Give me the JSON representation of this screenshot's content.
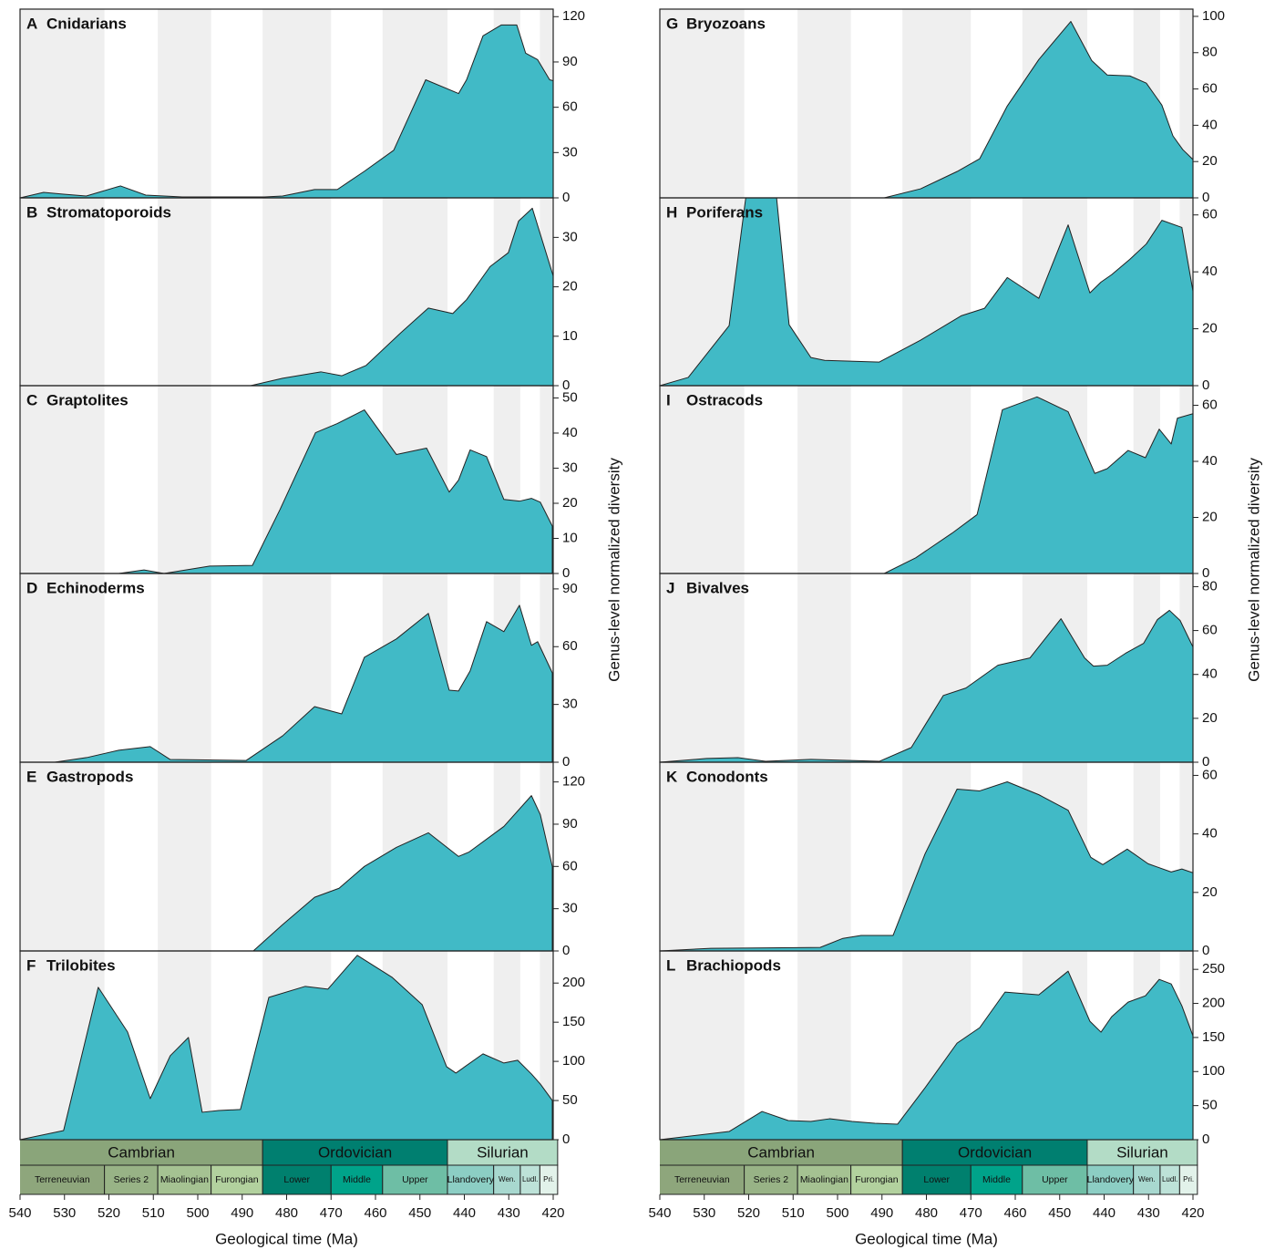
{
  "chart_data": [
    {
      "type": "area",
      "label": "A",
      "title": "Cnidarians",
      "color": "#41bac6",
      "x": [
        540,
        534.7,
        530.2,
        525.1,
        517.4,
        511.7,
        503.5,
        485,
        480.9,
        473.7,
        468.6,
        462.5,
        455.9,
        448.7,
        441.3,
        439.5,
        435.8,
        431.7,
        428.2,
        426.2,
        423.5,
        420.8,
        420
      ],
      "values": [
        0,
        3.6,
        2.4,
        1.2,
        7.9,
        1.8,
        0.6,
        0.6,
        1.2,
        5.5,
        5.5,
        17.6,
        31.5,
        78.2,
        69.1,
        78.2,
        107.3,
        114.5,
        114.5,
        95.8,
        91.5,
        78.2,
        77.6
      ],
      "ylim": [
        0,
        125
      ],
      "yticks": [
        0,
        30,
        60,
        90,
        120
      ]
    },
    {
      "type": "area",
      "label": "B",
      "title": "Stromatoporoids",
      "color": "#41bac6",
      "x": [
        488.1,
        480.9,
        472.3,
        467.6,
        462.1,
        454.3,
        448.1,
        442.6,
        439.5,
        434.2,
        430.1,
        427.8,
        424.7,
        420
      ],
      "values": [
        0,
        1.5,
        2.8,
        2.0,
        4.1,
        10.7,
        15.7,
        14.6,
        17.4,
        24.1,
        26.9,
        33.3,
        35.9,
        22.2
      ],
      "ylim": [
        0,
        38
      ],
      "yticks": [
        0,
        10,
        20,
        30
      ]
    },
    {
      "type": "area",
      "label": "C",
      "title": "Graptolites",
      "color": "#41bac6",
      "x": [
        517.8,
        512.1,
        507.6,
        497.3,
        487.7,
        481.5,
        473.5,
        468.6,
        462.5,
        455.3,
        448.5,
        443.4,
        441.3,
        438.7,
        435,
        431.1,
        427.6,
        424.9,
        422.9,
        420.2
      ],
      "values": [
        0,
        1.0,
        0,
        2.1,
        2.3,
        18.2,
        40.1,
        42.7,
        46.6,
        33.9,
        35.7,
        23.2,
        26.6,
        35.2,
        33.3,
        21.1,
        20.6,
        21.4,
        20.3,
        13.5
      ],
      "ylim": [
        0,
        53.5
      ],
      "yticks": [
        0,
        10,
        20,
        30,
        40,
        50
      ]
    },
    {
      "type": "area",
      "label": "D",
      "title": "Echinoderms",
      "color": "#41bac6",
      "x": [
        532.2,
        525.0,
        517.8,
        510.7,
        506.2,
        489.1,
        480.9,
        473.7,
        467.6,
        462.5,
        455.3,
        448.1,
        443.4,
        441.3,
        438.7,
        435,
        431.1,
        427.6,
        424.9,
        423.5,
        420.2
      ],
      "values": [
        0,
        2.4,
        6.2,
        8.1,
        1.4,
        0.9,
        13.7,
        28.9,
        25.1,
        54.5,
        64.0,
        77.3,
        37.4,
        37.0,
        47.4,
        73.0,
        67.8,
        81.5,
        60.7,
        62.6,
        46.4
      ],
      "ylim": [
        0,
        98
      ],
      "yticks": [
        0,
        30,
        60,
        90
      ]
    },
    {
      "type": "area",
      "label": "E",
      "title": "Gastropods",
      "color": "#41bac6",
      "x": [
        487.5,
        480.9,
        473.7,
        468.2,
        462.5,
        455.3,
        448.1,
        441.3,
        438.9,
        431.1,
        424.9,
        422.9,
        420.2
      ],
      "values": [
        0,
        18.7,
        38.1,
        44.5,
        60.0,
        73.5,
        83.9,
        67.1,
        70.3,
        88.4,
        110.3,
        96.8,
        60.0
      ],
      "ylim": [
        0,
        134
      ],
      "yticks": [
        0,
        30,
        60,
        90,
        120
      ]
    },
    {
      "type": "area",
      "label": "F",
      "title": "Trilobites",
      "color": "#41bac6",
      "x": [
        540,
        530.2,
        522.4,
        515.8,
        510.7,
        506.2,
        502.1,
        499.0,
        495.3,
        490.4,
        484.0,
        475.8,
        470.7,
        464.1,
        456.3,
        449.5,
        444.0,
        441.9,
        435.8,
        431.1,
        428.0,
        424.9,
        422.9,
        420.2
      ],
      "values": [
        0,
        11.7,
        194.6,
        137.5,
        52.4,
        107.2,
        130.5,
        35.0,
        37.3,
        38.5,
        181.8,
        195.8,
        192.3,
        235.4,
        207.5,
        172.5,
        93.2,
        85.1,
        109.6,
        97.9,
        101.4,
        83.9,
        71.1,
        50.1
      ],
      "ylim": [
        0,
        241
      ],
      "yticks": [
        0,
        50,
        100,
        150,
        200
      ]
    },
    {
      "type": "area",
      "label": "G",
      "title": "Bryozoans",
      "color": "#41bac6",
      "x": [
        489.5,
        481.3,
        473.1,
        468.0,
        461.8,
        454.7,
        447.5,
        442.8,
        439.3,
        434.2,
        430.5,
        427.0,
        424.5,
        422.3,
        420
      ],
      "values": [
        0,
        5.0,
        14.5,
        21.6,
        50.6,
        76.2,
        97.2,
        75.7,
        67.7,
        67.2,
        63.2,
        51.1,
        34.1,
        26.6,
        21.1
      ],
      "ylim": [
        0,
        104
      ],
      "yticks": [
        0,
        20,
        40,
        60,
        80,
        100
      ]
    },
    {
      "type": "area",
      "label": "H",
      "title": "Poriferans",
      "color": "#41bac6",
      "x": [
        540,
        533.6,
        524.4,
        519.5,
        514.6,
        510.9,
        506.0,
        502.9,
        490.6,
        481.3,
        472.1,
        466.9,
        461.8,
        454.7,
        448.1,
        443.2,
        440.7,
        438.3,
        434.2,
        430.5,
        427.0,
        422.5,
        420
      ],
      "values": [
        0,
        2.9,
        21.1,
        80,
        80,
        21.4,
        9.9,
        8.9,
        8.3,
        16.0,
        24.6,
        27.2,
        38.0,
        30.7,
        56.5,
        32.6,
        36.4,
        39.0,
        44.4,
        49.8,
        58.1,
        55.6,
        33.2
      ],
      "ylim": [
        0,
        66
      ],
      "yticks": [
        0,
        20,
        40,
        60
      ]
    },
    {
      "type": "area",
      "label": "I",
      "title": "Ostracods",
      "color": "#41bac6",
      "x": [
        489.5,
        482.4,
        474.2,
        468.6,
        462.9,
        455.1,
        448.1,
        442.1,
        439.3,
        434.6,
        430.7,
        427.6,
        424.9,
        423.5,
        420
      ],
      "values": [
        0,
        5.6,
        14.4,
        21.0,
        58.4,
        63.0,
        57.7,
        35.7,
        37.4,
        43.9,
        41.3,
        51.5,
        46.2,
        55.4,
        57.0
      ],
      "ylim": [
        0,
        67
      ],
      "yticks": [
        0,
        20,
        40,
        60
      ]
    },
    {
      "type": "area",
      "label": "J",
      "title": "Bivalves",
      "color": "#41bac6",
      "x": [
        540,
        529.5,
        522.4,
        516.2,
        506.0,
        490.6,
        483.4,
        476.2,
        471.1,
        463.9,
        456.7,
        449.7,
        444.4,
        442.4,
        439.3,
        435.2,
        431.1,
        428,
        425.3,
        422.9,
        420
      ],
      "values": [
        0,
        1.7,
        2.1,
        0.4,
        1.3,
        0.4,
        6.7,
        30.4,
        33.8,
        44.2,
        47.5,
        65.4,
        47.5,
        43.8,
        44.2,
        49.6,
        54.2,
        65.0,
        69.2,
        64.6,
        52.5
      ],
      "ylim": [
        0,
        86
      ],
      "yticks": [
        0,
        20,
        40,
        60,
        80
      ]
    },
    {
      "type": "area",
      "label": "K",
      "title": "Conodonts",
      "color": "#41bac6",
      "x": [
        540,
        528.5,
        503.9,
        498.8,
        494.7,
        487.5,
        480.3,
        473.1,
        468.0,
        461.8,
        454.7,
        448.1,
        443.0,
        440.3,
        434.8,
        430.1,
        424.9,
        422.5,
        420
      ],
      "values": [
        0,
        0.9,
        1.2,
        4.3,
        5.3,
        5.3,
        33.2,
        55.3,
        54.7,
        57.8,
        53.4,
        48.1,
        32.0,
        29.5,
        34.8,
        29.8,
        27.0,
        28.0,
        26.7
      ],
      "ylim": [
        0,
        64.5
      ],
      "yticks": [
        0,
        20,
        40,
        60
      ]
    },
    {
      "type": "area",
      "label": "L",
      "title": "Brachiopods",
      "color": "#41bac6",
      "x": [
        540,
        524.4,
        517.0,
        511.1,
        506.0,
        501.8,
        496.7,
        491.6,
        486.5,
        480.3,
        473.1,
        468.0,
        462.3,
        454.7,
        448.1,
        443.2,
        440.7,
        438.3,
        434.6,
        430.7,
        427.6,
        424.9,
        422.5,
        420
      ],
      "values": [
        0,
        12.0,
        41.4,
        28.1,
        26.7,
        30.7,
        26.7,
        24.1,
        22.7,
        76.2,
        141.7,
        164.4,
        216.6,
        212.6,
        247.3,
        173.8,
        157.8,
        180.5,
        201.9,
        211.2,
        235.3,
        228.6,
        196.5,
        152.4
      ],
      "ylim": [
        0,
        277
      ],
      "yticks": [
        0,
        50,
        100,
        150,
        200,
        250
      ]
    }
  ],
  "axes": [
    {
      "xlabel": "Geological time (Ma)",
      "ylabel": "Genus-level normalized diversity",
      "xlim": [
        540,
        420
      ],
      "xticks": [
        540,
        530,
        520,
        510,
        500,
        490,
        480,
        470,
        460,
        450,
        440,
        430,
        420
      ]
    },
    {
      "xlabel": "Geological time (Ma)",
      "ylabel": "Genus-level normalized diversity",
      "xlim": [
        540,
        420
      ],
      "xticks": [
        540,
        530,
        520,
        510,
        500,
        490,
        480,
        470,
        460,
        450,
        440,
        430,
        420
      ]
    }
  ],
  "timescale": {
    "periods": [
      {
        "name": "Cambrian",
        "start": 541,
        "end": 485.4,
        "color": "#8aa57a",
        "text": "#ffffff"
      },
      {
        "name": "Ordovician",
        "start": 485.4,
        "end": 443.8,
        "color": "#007f70",
        "text": "#ffffff"
      },
      {
        "name": "Silurian",
        "start": 443.8,
        "end": 419,
        "color": "#b3dcc6",
        "text": "#111111"
      }
    ],
    "epochs": [
      {
        "name": "Terreneuvian",
        "start": 541,
        "end": 521,
        "color": "#8ea67c",
        "text": "#111111"
      },
      {
        "name": "Series 2",
        "start": 521,
        "end": 509,
        "color": "#98b386",
        "text": "#111111"
      },
      {
        "name": "Miaolingian",
        "start": 509,
        "end": 497,
        "color": "#a5c292",
        "text": "#111111"
      },
      {
        "name": "Furongian",
        "start": 497,
        "end": 485.4,
        "color": "#b2d19e",
        "text": "#111111"
      },
      {
        "name": "Lower",
        "start": 485.4,
        "end": 470,
        "color": "#00806e",
        "text": "#ffffff"
      },
      {
        "name": "Middle",
        "start": 470,
        "end": 458.4,
        "color": "#00a38a",
        "text": "#ffffff"
      },
      {
        "name": "Upper",
        "start": 458.4,
        "end": 443.8,
        "color": "#6ebea5",
        "text": "#ffffff"
      },
      {
        "name": "Llandovery",
        "start": 443.8,
        "end": 433.4,
        "color": "#8ccec4",
        "text": "#111111"
      },
      {
        "name": "Wen.",
        "start": 433.4,
        "end": 427.4,
        "color": "#a8d8cf",
        "text": "#111111"
      },
      {
        "name": "Ludl.",
        "start": 427.4,
        "end": 423,
        "color": "#bde2d8",
        "text": "#111111"
      },
      {
        "name": "Pri.",
        "start": 423,
        "end": 419,
        "color": "#e2f2ea",
        "text": "#111111"
      }
    ]
  }
}
